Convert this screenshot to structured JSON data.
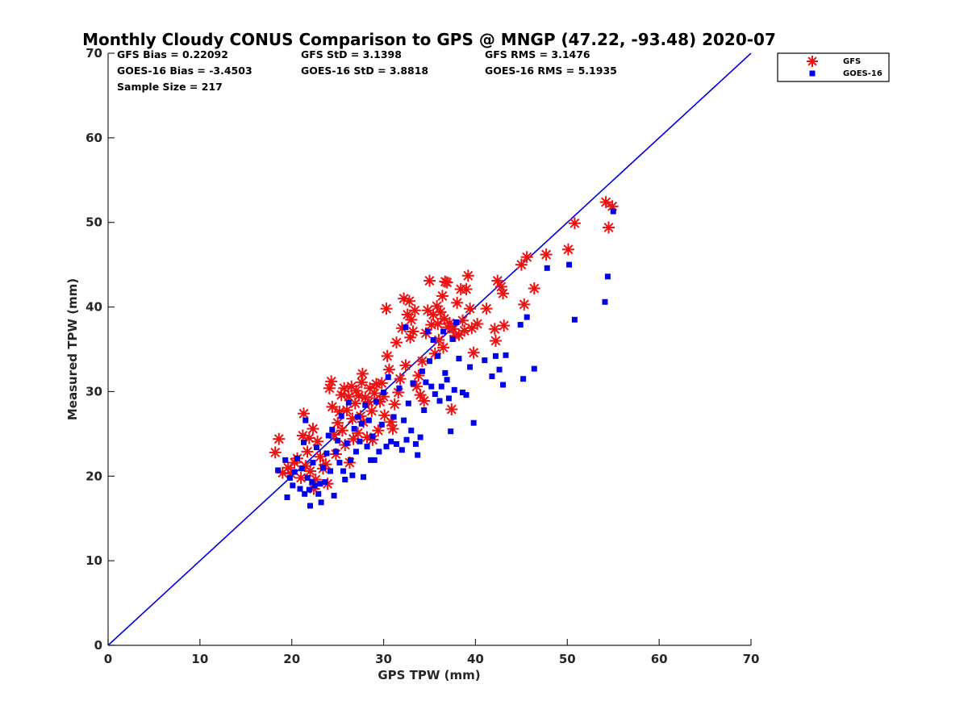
{
  "chart_data": {
    "type": "scatter",
    "title": "Monthly Cloudy CONUS Comparison to GPS @ MNGP (47.22, -93.48) 2020-07",
    "xlabel": "GPS TPW (mm)",
    "ylabel": "Measured TPW (mm)",
    "xlim": [
      0,
      70
    ],
    "ylim": [
      0,
      70
    ],
    "xticks": [
      "0",
      "10",
      "20",
      "30",
      "40",
      "50",
      "60",
      "70"
    ],
    "yticks": [
      "0",
      "10",
      "20",
      "30",
      "40",
      "50",
      "60",
      "70"
    ],
    "grid": false,
    "legend_position": "top-right",
    "stats": {
      "gfs_bias": "GFS Bias = 0.22092",
      "gfs_std": "GFS StD = 3.1398",
      "gfs_rms": "GFS RMS = 3.1476",
      "goes_bias": "GOES-16 Bias = -3.4503",
      "goes_std": "GOES-16 StD = 3.8818",
      "goes_rms": "GOES-16 RMS = 5.1935",
      "sample_size": "Sample Size = 217"
    },
    "reference_line": {
      "x": [
        0,
        70
      ],
      "y": [
        0,
        70
      ],
      "color": "#0000dd"
    },
    "series": [
      {
        "name": "GFS",
        "marker": "asterisk",
        "color": "#ee1111",
        "points": [
          [
            18.2,
            22.8
          ],
          [
            18.6,
            24.4
          ],
          [
            19.0,
            20.4
          ],
          [
            19.6,
            21.0
          ],
          [
            19.9,
            20.3
          ],
          [
            20.3,
            21.6
          ],
          [
            20.6,
            22.1
          ],
          [
            21.0,
            19.8
          ],
          [
            21.2,
            24.8
          ],
          [
            21.3,
            27.4
          ],
          [
            21.5,
            21.2
          ],
          [
            21.7,
            22.9
          ],
          [
            21.9,
            24.5
          ],
          [
            22.0,
            20.6
          ],
          [
            22.3,
            25.6
          ],
          [
            22.4,
            18.5
          ],
          [
            22.6,
            19.6
          ],
          [
            22.8,
            24.1
          ],
          [
            23.1,
            22.3
          ],
          [
            23.4,
            20.9
          ],
          [
            23.7,
            21.4
          ],
          [
            23.9,
            19.1
          ],
          [
            24.1,
            30.4
          ],
          [
            24.3,
            31.2
          ],
          [
            24.4,
            28.2
          ],
          [
            24.6,
            24.9
          ],
          [
            24.8,
            22.6
          ],
          [
            25.0,
            26.3
          ],
          [
            25.2,
            27.6
          ],
          [
            25.4,
            29.6
          ],
          [
            25.5,
            25.4
          ],
          [
            25.7,
            30.4
          ],
          [
            25.8,
            23.7
          ],
          [
            26.0,
            27.8
          ],
          [
            26.2,
            29.4
          ],
          [
            26.3,
            21.6
          ],
          [
            26.5,
            30.6
          ],
          [
            26.6,
            26.8
          ],
          [
            26.7,
            24.4
          ],
          [
            26.9,
            28.6
          ],
          [
            27.0,
            30.1
          ],
          [
            27.2,
            25.1
          ],
          [
            27.3,
            29.5
          ],
          [
            27.5,
            27.1
          ],
          [
            27.6,
            31.1
          ],
          [
            27.7,
            32.1
          ],
          [
            27.8,
            26.4
          ],
          [
            28.0,
            29.3
          ],
          [
            28.2,
            24.6
          ],
          [
            28.4,
            28.8
          ],
          [
            28.5,
            30.4
          ],
          [
            28.7,
            27.7
          ],
          [
            28.8,
            24.3
          ],
          [
            29.0,
            29.8
          ],
          [
            29.2,
            30.9
          ],
          [
            29.4,
            25.4
          ],
          [
            29.6,
            28.8
          ],
          [
            29.8,
            31.0
          ],
          [
            30.0,
            29.4
          ],
          [
            30.1,
            27.2
          ],
          [
            30.3,
            39.8
          ],
          [
            30.4,
            34.2
          ],
          [
            30.6,
            32.6
          ],
          [
            30.8,
            26.4
          ],
          [
            31.0,
            25.6
          ],
          [
            31.2,
            28.5
          ],
          [
            31.4,
            35.8
          ],
          [
            31.6,
            29.9
          ],
          [
            31.8,
            31.5
          ],
          [
            32.0,
            37.5
          ],
          [
            32.2,
            41.0
          ],
          [
            32.4,
            33.1
          ],
          [
            32.6,
            39.1
          ],
          [
            32.8,
            40.7
          ],
          [
            32.9,
            36.4
          ],
          [
            33.0,
            38.5
          ],
          [
            33.2,
            37.1
          ],
          [
            33.4,
            39.6
          ],
          [
            33.6,
            30.6
          ],
          [
            33.8,
            31.9
          ],
          [
            34.0,
            29.6
          ],
          [
            34.2,
            33.6
          ],
          [
            34.4,
            28.9
          ],
          [
            34.6,
            36.9
          ],
          [
            34.8,
            39.6
          ],
          [
            35.0,
            43.1
          ],
          [
            35.2,
            37.9
          ],
          [
            35.4,
            39.1
          ],
          [
            35.6,
            34.5
          ],
          [
            35.8,
            40.1
          ],
          [
            35.9,
            38.0
          ],
          [
            36.0,
            36.1
          ],
          [
            36.2,
            39.4
          ],
          [
            36.4,
            41.3
          ],
          [
            36.5,
            35.2
          ],
          [
            36.6,
            38.6
          ],
          [
            36.7,
            43.0
          ],
          [
            36.9,
            42.9
          ],
          [
            37.0,
            37.6
          ],
          [
            37.2,
            38.1
          ],
          [
            37.4,
            27.9
          ],
          [
            37.6,
            37.4
          ],
          [
            37.8,
            36.6
          ],
          [
            38.0,
            40.5
          ],
          [
            38.2,
            36.7
          ],
          [
            38.4,
            42.1
          ],
          [
            38.6,
            38.4
          ],
          [
            38.8,
            37.2
          ],
          [
            39.0,
            42.1
          ],
          [
            39.2,
            43.7
          ],
          [
            39.4,
            39.8
          ],
          [
            39.6,
            37.5
          ],
          [
            39.8,
            34.6
          ],
          [
            40.2,
            38.0
          ],
          [
            41.2,
            39.8
          ],
          [
            42.1,
            37.4
          ],
          [
            42.2,
            36.0
          ],
          [
            42.4,
            43.1
          ],
          [
            42.8,
            42.4
          ],
          [
            43.0,
            41.6
          ],
          [
            43.1,
            37.8
          ],
          [
            45.0,
            45.0
          ],
          [
            45.3,
            40.3
          ],
          [
            45.6,
            45.9
          ],
          [
            46.4,
            42.2
          ],
          [
            47.7,
            46.2
          ],
          [
            50.1,
            46.8
          ],
          [
            50.8,
            49.9
          ],
          [
            54.2,
            52.4
          ],
          [
            54.5,
            49.4
          ],
          [
            54.9,
            51.9
          ]
        ]
      },
      {
        "name": "GOES-16",
        "marker": "square",
        "color": "#0000ee",
        "points": [
          [
            18.5,
            20.7
          ],
          [
            19.3,
            21.9
          ],
          [
            19.5,
            17.5
          ],
          [
            19.8,
            19.8
          ],
          [
            20.1,
            18.9
          ],
          [
            20.3,
            20.5
          ],
          [
            20.6,
            22.1
          ],
          [
            20.9,
            18.5
          ],
          [
            21.1,
            20.9
          ],
          [
            21.3,
            24.0
          ],
          [
            21.4,
            17.9
          ],
          [
            21.5,
            26.6
          ],
          [
            21.7,
            19.8
          ],
          [
            21.9,
            18.4
          ],
          [
            22.0,
            16.5
          ],
          [
            22.2,
            19.3
          ],
          [
            22.3,
            21.6
          ],
          [
            22.5,
            18.9
          ],
          [
            22.7,
            23.4
          ],
          [
            22.9,
            17.9
          ],
          [
            23.1,
            19.1
          ],
          [
            23.2,
            16.9
          ],
          [
            23.4,
            21.0
          ],
          [
            23.6,
            19.3
          ],
          [
            23.8,
            22.7
          ],
          [
            24.0,
            24.8
          ],
          [
            24.2,
            20.6
          ],
          [
            24.4,
            25.5
          ],
          [
            24.6,
            17.7
          ],
          [
            24.8,
            22.9
          ],
          [
            25.0,
            24.2
          ],
          [
            25.2,
            21.6
          ],
          [
            25.4,
            27.1
          ],
          [
            25.6,
            20.6
          ],
          [
            25.8,
            19.6
          ],
          [
            26.0,
            23.9
          ],
          [
            26.2,
            28.7
          ],
          [
            26.4,
            21.9
          ],
          [
            26.6,
            20.1
          ],
          [
            26.8,
            25.6
          ],
          [
            27.0,
            22.9
          ],
          [
            27.2,
            27.0
          ],
          [
            27.4,
            24.1
          ],
          [
            27.6,
            26.2
          ],
          [
            27.8,
            19.9
          ],
          [
            28.0,
            28.4
          ],
          [
            28.2,
            23.5
          ],
          [
            28.4,
            26.6
          ],
          [
            28.6,
            21.9
          ],
          [
            28.8,
            24.7
          ],
          [
            29.0,
            21.9
          ],
          [
            29.2,
            28.8
          ],
          [
            29.5,
            22.9
          ],
          [
            29.8,
            26.1
          ],
          [
            30.0,
            29.9
          ],
          [
            30.3,
            23.5
          ],
          [
            30.5,
            31.7
          ],
          [
            30.8,
            24.1
          ],
          [
            31.1,
            27.0
          ],
          [
            31.4,
            23.8
          ],
          [
            31.7,
            30.4
          ],
          [
            32.0,
            23.1
          ],
          [
            32.2,
            26.6
          ],
          [
            32.4,
            37.6
          ],
          [
            32.5,
            24.3
          ],
          [
            32.7,
            28.6
          ],
          [
            33.0,
            25.4
          ],
          [
            33.2,
            31.0
          ],
          [
            33.5,
            23.8
          ],
          [
            33.7,
            22.5
          ],
          [
            34.0,
            24.6
          ],
          [
            34.2,
            32.4
          ],
          [
            34.4,
            27.8
          ],
          [
            34.6,
            31.1
          ],
          [
            34.8,
            37.1
          ],
          [
            35.0,
            33.6
          ],
          [
            35.2,
            30.6
          ],
          [
            35.4,
            36.1
          ],
          [
            35.6,
            29.7
          ],
          [
            35.9,
            34.2
          ],
          [
            36.1,
            28.9
          ],
          [
            36.3,
            30.6
          ],
          [
            36.5,
            37.1
          ],
          [
            36.7,
            32.2
          ],
          [
            36.9,
            31.4
          ],
          [
            37.1,
            29.2
          ],
          [
            37.3,
            25.3
          ],
          [
            37.5,
            36.2
          ],
          [
            37.7,
            30.2
          ],
          [
            37.9,
            38.2
          ],
          [
            38.2,
            33.9
          ],
          [
            38.6,
            29.9
          ],
          [
            39.0,
            29.6
          ],
          [
            39.4,
            32.9
          ],
          [
            39.8,
            26.3
          ],
          [
            41.0,
            33.7
          ],
          [
            41.8,
            31.8
          ],
          [
            42.2,
            34.2
          ],
          [
            42.6,
            32.6
          ],
          [
            43.0,
            30.8
          ],
          [
            43.3,
            34.3
          ],
          [
            44.9,
            37.9
          ],
          [
            45.2,
            31.5
          ],
          [
            45.6,
            38.8
          ],
          [
            46.4,
            32.7
          ],
          [
            47.8,
            44.6
          ],
          [
            50.2,
            45.0
          ],
          [
            50.8,
            38.5
          ],
          [
            54.1,
            40.6
          ],
          [
            54.4,
            43.6
          ],
          [
            55.0,
            51.3
          ]
        ]
      }
    ]
  }
}
